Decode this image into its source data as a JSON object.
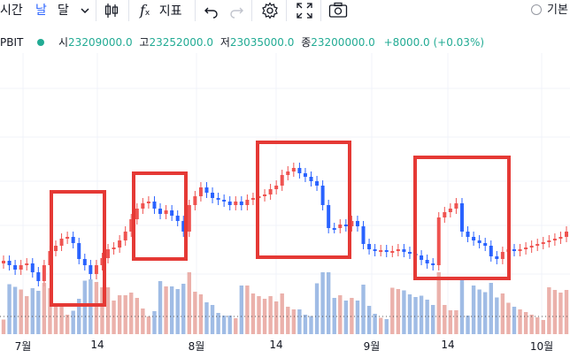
{
  "toolbar": {
    "interval_partial": "시간",
    "interval_day": "날",
    "interval_month": "달",
    "indicators_label": "지표",
    "basic_label": "기본"
  },
  "legend": {
    "symbol_partial": "PBIT",
    "open_label": "시",
    "open": "23209000.0",
    "high_label": "고",
    "high": "23252000.0",
    "low_label": "저",
    "low": "23035000.0",
    "close_label": "종",
    "close": "23200000.0",
    "change": "+8000.0 (+0.03%)",
    "status_color": "#22ab94"
  },
  "xaxis": {
    "labels": [
      "7월",
      "14",
      "8월",
      "14",
      "9월",
      "14",
      "10월"
    ]
  },
  "colors": {
    "up": "#ef5350",
    "down": "#2962ff",
    "highlight_box": "#e53935"
  }
}
